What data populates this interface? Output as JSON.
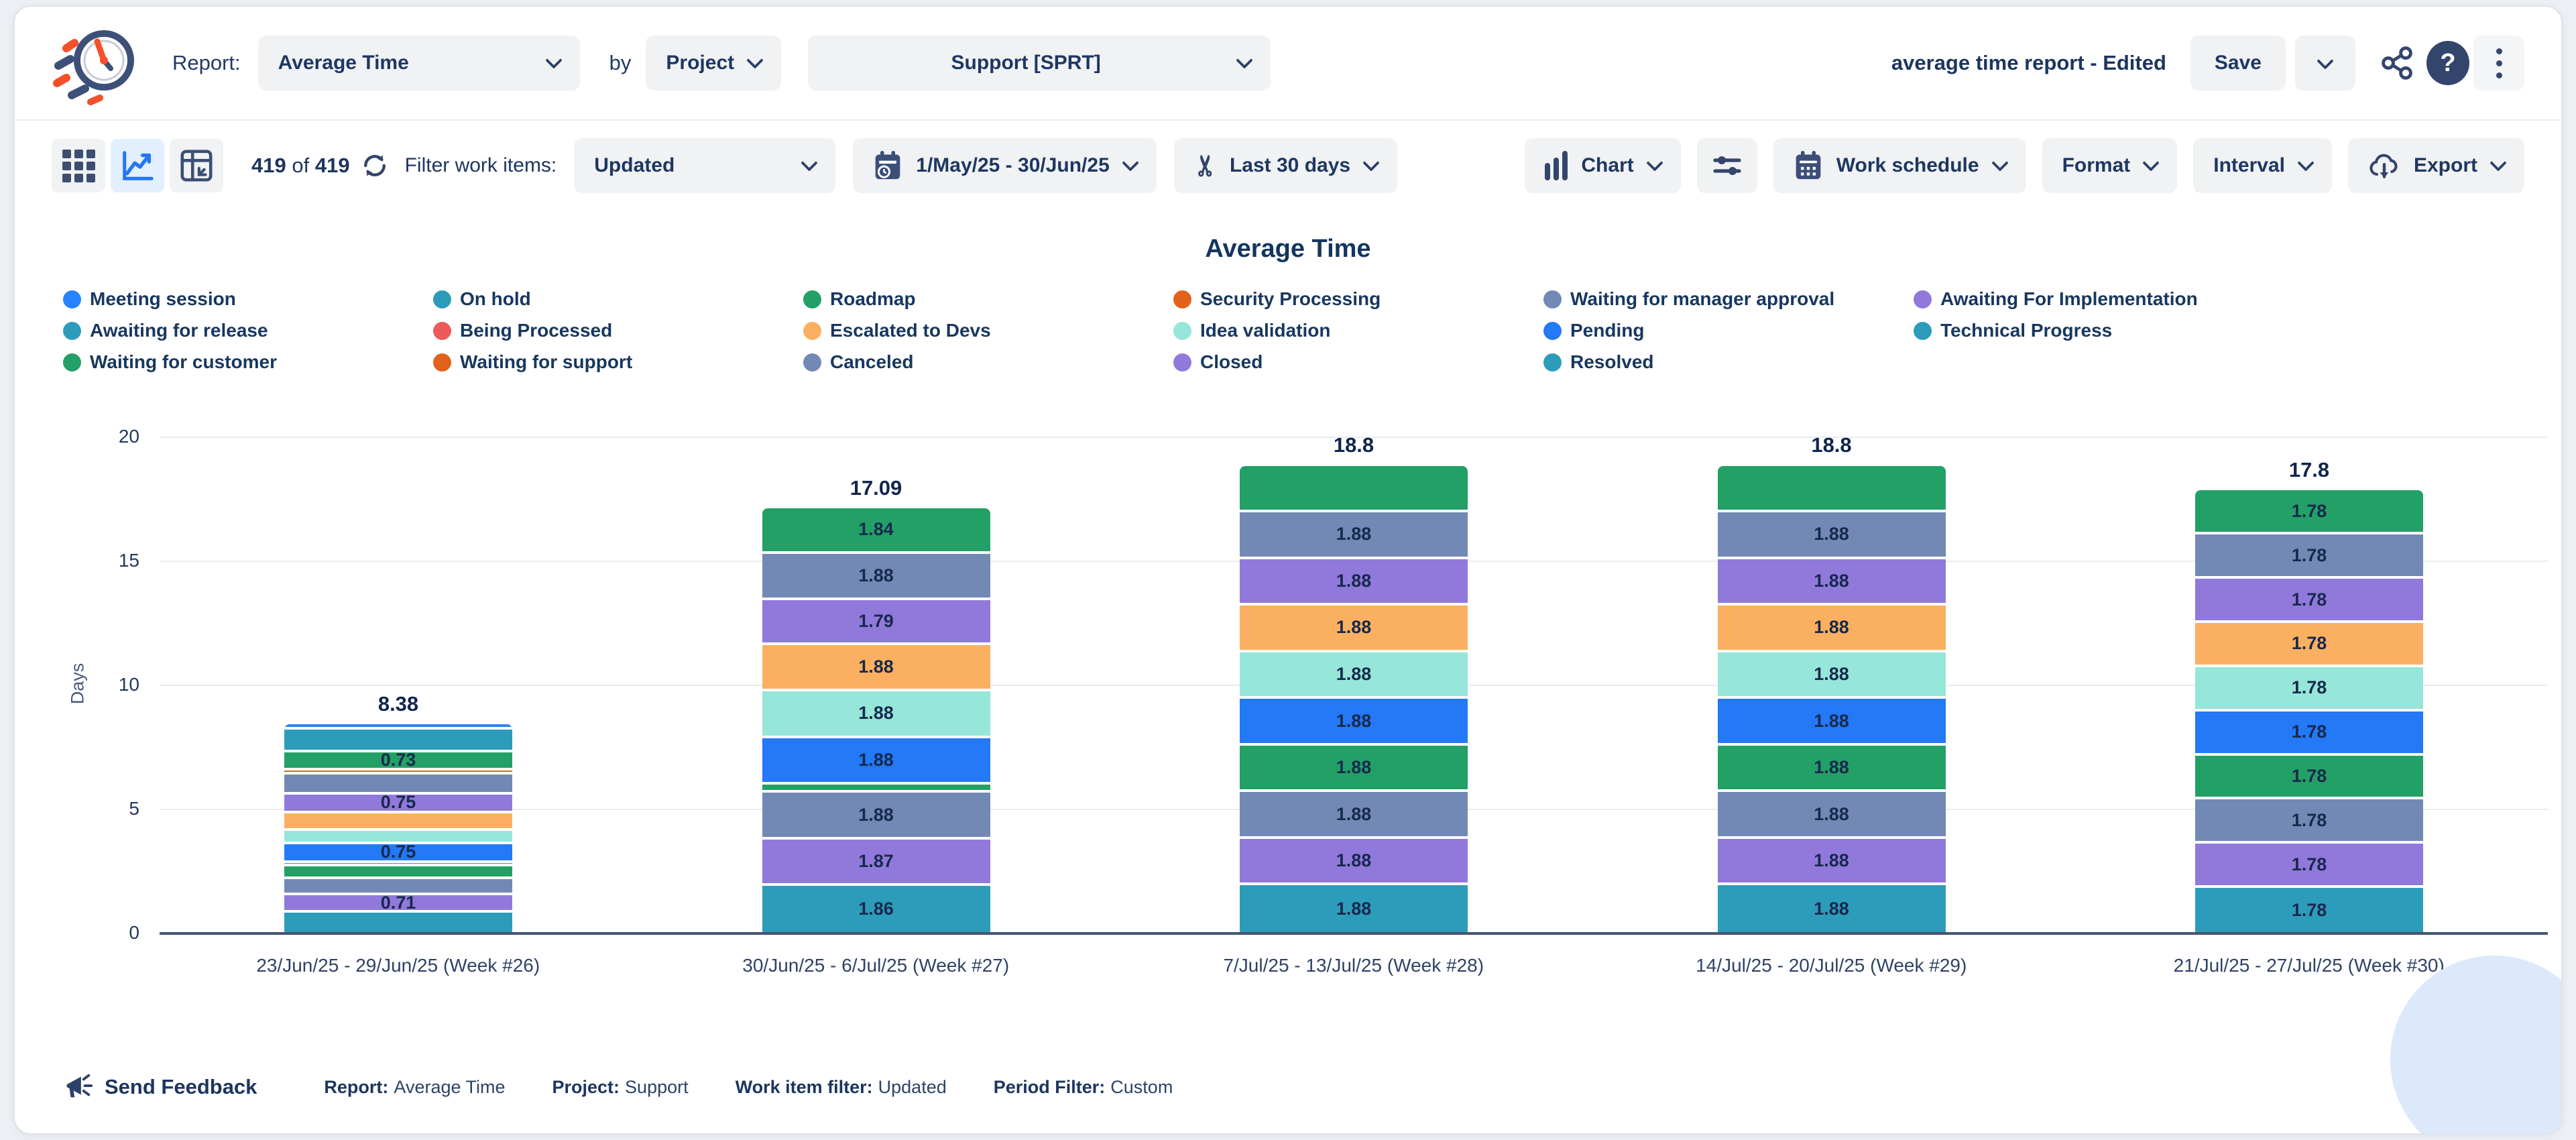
{
  "header": {
    "report_label": "Report:",
    "report_type": "Average Time",
    "by_label": "by",
    "group_by": "Project",
    "project": "Support [SPRT]",
    "document_title": "average time report - Edited",
    "save": "Save"
  },
  "toolbar": {
    "count": "419",
    "of": "of",
    "total": "419",
    "filter_label": "Filter work items:",
    "filter_value": "Updated",
    "date_range": "1/May/25 - 30/Jun/25",
    "trim": "Last 30 days",
    "chart": "Chart",
    "work_schedule": "Work schedule",
    "format": "Format",
    "interval": "Interval",
    "export": "Export"
  },
  "colors": {
    "blue": "#2379f6",
    "bright_blue": "#2684ff",
    "teal": "#2d9cba",
    "green": "#23a066",
    "dark_orange": "#e2621b",
    "slate": "#7189b4",
    "purple": "#9179dc",
    "light_orange": "#fbb061",
    "mint": "#96e6d9",
    "red": "#ee5a5a"
  },
  "legend": {
    "columns": [
      [
        {
          "label": "Meeting session",
          "color": "bright_blue"
        },
        {
          "label": "Awaiting for release",
          "color": "teal"
        },
        {
          "label": "Waiting for customer",
          "color": "green"
        }
      ],
      [
        {
          "label": "On hold",
          "color": "teal"
        },
        {
          "label": "Being Processed",
          "color": "red"
        },
        {
          "label": "Waiting for support",
          "color": "dark_orange"
        }
      ],
      [
        {
          "label": "Roadmap",
          "color": "green"
        },
        {
          "label": "Escalated to Devs",
          "color": "light_orange"
        },
        {
          "label": "Canceled",
          "color": "slate"
        }
      ],
      [
        {
          "label": "Security Processing",
          "color": "dark_orange"
        },
        {
          "label": "Idea validation",
          "color": "mint"
        },
        {
          "label": "Closed",
          "color": "purple"
        }
      ],
      [
        {
          "label": "Waiting for manager approval",
          "color": "slate"
        },
        {
          "label": "Pending",
          "color": "blue"
        },
        {
          "label": "Resolved",
          "color": "teal"
        }
      ],
      [
        {
          "label": "Awaiting For Implementation",
          "color": "purple"
        },
        {
          "label": "Technical Progress",
          "color": "teal"
        }
      ]
    ]
  },
  "chart_data": {
    "type": "bar",
    "stacked": true,
    "title": "Average Time",
    "ylabel": "Days",
    "ylim": [
      0,
      20
    ],
    "yticks": [
      0,
      5,
      10,
      15,
      20
    ],
    "grid": true,
    "legend_position": "top",
    "categories": [
      "23/Jun/25 - 29/Jun/25 (Week #26)",
      "30/Jun/25 - 6/Jul/25 (Week #27)",
      "7/Jul/25 - 13/Jul/25 (Week #28)",
      "14/Jul/25 - 20/Jul/25 (Week #29)",
      "21/Jul/25 - 27/Jul/25 (Week #30)"
    ],
    "totals": [
      "8.38",
      "17.09",
      "18.8",
      "18.8",
      "17.8"
    ],
    "bars": [
      {
        "category": "23/Jun/25 - 29/Jun/25 (Week #26)",
        "total": "8.38",
        "segments": [
          {
            "status": "Meeting session",
            "color": "bright_blue",
            "value": 0.22,
            "label": ""
          },
          {
            "status": "On hold",
            "color": "teal",
            "value": 0.92,
            "label": ""
          },
          {
            "status": "Roadmap",
            "color": "green",
            "value": 0.73,
            "label": "0.73"
          },
          {
            "status": "Security Processing",
            "color": "dark_orange",
            "value": 0.15,
            "label": ""
          },
          {
            "status": "Waiting for manager approval",
            "color": "slate",
            "value": 0.82,
            "label": ""
          },
          {
            "status": "Awaiting For Implementation",
            "color": "purple",
            "value": 0.75,
            "label": "0.75"
          },
          {
            "status": "Escalated to Devs",
            "color": "light_orange",
            "value": 0.72,
            "label": ""
          },
          {
            "status": "Idea validation",
            "color": "mint",
            "value": 0.53,
            "label": ""
          },
          {
            "status": "Pending",
            "color": "blue",
            "value": 0.75,
            "label": "0.75"
          },
          {
            "status": "Technical Progress",
            "color": "teal",
            "value": 0.15,
            "label": ""
          },
          {
            "status": "Waiting for customer",
            "color": "green",
            "value": 0.5,
            "label": ""
          },
          {
            "status": "Canceled",
            "color": "slate",
            "value": 0.65,
            "label": ""
          },
          {
            "status": "Closed",
            "color": "purple",
            "value": 0.71,
            "label": "0.71"
          },
          {
            "status": "Resolved",
            "color": "teal",
            "value": 0.78,
            "label": ""
          }
        ]
      },
      {
        "category": "30/Jun/25 - 6/Jul/25 (Week #27)",
        "total": "17.09",
        "segments": [
          {
            "status": "Roadmap",
            "color": "green",
            "value": 1.84,
            "label": "1.84"
          },
          {
            "status": "Waiting for manager approval",
            "color": "slate",
            "value": 1.88,
            "label": "1.88"
          },
          {
            "status": "Awaiting For Implementation",
            "color": "purple",
            "value": 1.79,
            "label": "1.79"
          },
          {
            "status": "Escalated to Devs",
            "color": "light_orange",
            "value": 1.88,
            "label": "1.88"
          },
          {
            "status": "Idea validation",
            "color": "mint",
            "value": 1.88,
            "label": "1.88"
          },
          {
            "status": "Pending",
            "color": "blue",
            "value": 1.88,
            "label": "1.88"
          },
          {
            "status": "Waiting for customer",
            "color": "green",
            "value": 0.33,
            "label": ""
          },
          {
            "status": "Canceled",
            "color": "slate",
            "value": 1.88,
            "label": "1.88"
          },
          {
            "status": "Closed",
            "color": "purple",
            "value": 1.87,
            "label": "1.87"
          },
          {
            "status": "Resolved",
            "color": "teal",
            "value": 1.86,
            "label": "1.86"
          }
        ]
      },
      {
        "category": "7/Jul/25 - 13/Jul/25 (Week #28)",
        "total": "18.8",
        "segments": [
          {
            "status": "Roadmap",
            "color": "green",
            "value": 1.88,
            "label": ""
          },
          {
            "status": "Waiting for manager approval",
            "color": "slate",
            "value": 1.88,
            "label": "1.88"
          },
          {
            "status": "Awaiting For Implementation",
            "color": "purple",
            "value": 1.88,
            "label": "1.88"
          },
          {
            "status": "Escalated to Devs",
            "color": "light_orange",
            "value": 1.88,
            "label": "1.88"
          },
          {
            "status": "Idea validation",
            "color": "mint",
            "value": 1.88,
            "label": "1.88"
          },
          {
            "status": "Pending",
            "color": "blue",
            "value": 1.88,
            "label": "1.88"
          },
          {
            "status": "Waiting for customer",
            "color": "green",
            "value": 1.88,
            "label": "1.88"
          },
          {
            "status": "Canceled",
            "color": "slate",
            "value": 1.88,
            "label": "1.88"
          },
          {
            "status": "Closed",
            "color": "purple",
            "value": 1.88,
            "label": "1.88"
          },
          {
            "status": "Resolved",
            "color": "teal",
            "value": 1.88,
            "label": "1.88"
          }
        ]
      },
      {
        "category": "14/Jul/25 - 20/Jul/25 (Week #29)",
        "total": "18.8",
        "segments": [
          {
            "status": "Roadmap",
            "color": "green",
            "value": 1.88,
            "label": ""
          },
          {
            "status": "Waiting for manager approval",
            "color": "slate",
            "value": 1.88,
            "label": "1.88"
          },
          {
            "status": "Awaiting For Implementation",
            "color": "purple",
            "value": 1.88,
            "label": "1.88"
          },
          {
            "status": "Escalated to Devs",
            "color": "light_orange",
            "value": 1.88,
            "label": "1.88"
          },
          {
            "status": "Idea validation",
            "color": "mint",
            "value": 1.88,
            "label": "1.88"
          },
          {
            "status": "Pending",
            "color": "blue",
            "value": 1.88,
            "label": "1.88"
          },
          {
            "status": "Waiting for customer",
            "color": "green",
            "value": 1.88,
            "label": "1.88"
          },
          {
            "status": "Canceled",
            "color": "slate",
            "value": 1.88,
            "label": "1.88"
          },
          {
            "status": "Closed",
            "color": "purple",
            "value": 1.88,
            "label": "1.88"
          },
          {
            "status": "Resolved",
            "color": "teal",
            "value": 1.88,
            "label": "1.88"
          }
        ]
      },
      {
        "category": "21/Jul/25 - 27/Jul/25 (Week #30)",
        "total": "17.8",
        "segments": [
          {
            "status": "Roadmap",
            "color": "green",
            "value": 1.78,
            "label": "1.78"
          },
          {
            "status": "Waiting for manager approval",
            "color": "slate",
            "value": 1.78,
            "label": "1.78"
          },
          {
            "status": "Awaiting For Implementation",
            "color": "purple",
            "value": 1.78,
            "label": "1.78"
          },
          {
            "status": "Escalated to Devs",
            "color": "light_orange",
            "value": 1.78,
            "label": "1.78"
          },
          {
            "status": "Idea validation",
            "color": "mint",
            "value": 1.78,
            "label": "1.78"
          },
          {
            "status": "Pending",
            "color": "blue",
            "value": 1.78,
            "label": "1.78"
          },
          {
            "status": "Waiting for customer",
            "color": "green",
            "value": 1.78,
            "label": "1.78"
          },
          {
            "status": "Canceled",
            "color": "slate",
            "value": 1.78,
            "label": "1.78"
          },
          {
            "status": "Closed",
            "color": "purple",
            "value": 1.78,
            "label": "1.78"
          },
          {
            "status": "Resolved",
            "color": "teal",
            "value": 1.78,
            "label": "1.78"
          }
        ]
      }
    ]
  },
  "footer": {
    "send_feedback": "Send Feedback",
    "items": [
      {
        "label": "Report:",
        "value": "Average Time"
      },
      {
        "label": "Project:",
        "value": "Support"
      },
      {
        "label": "Work item filter:",
        "value": "Updated"
      },
      {
        "label": "Period Filter:",
        "value": "Custom"
      }
    ]
  }
}
